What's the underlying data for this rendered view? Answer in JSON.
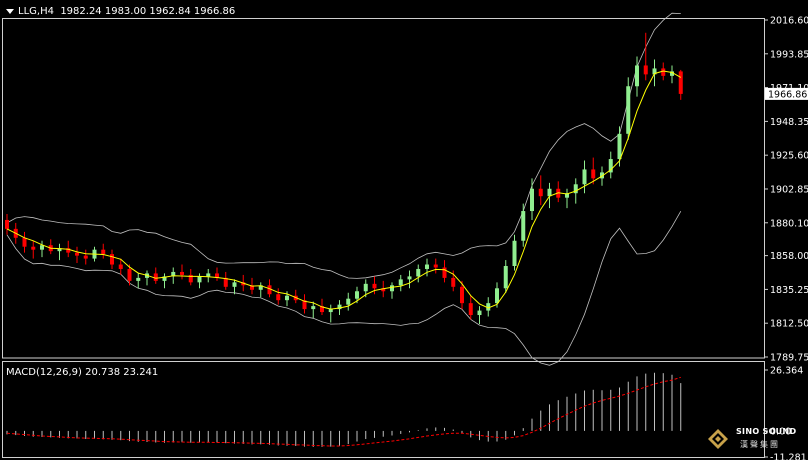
{
  "header": {
    "symbol": "LLG,H4",
    "ohlc": "1982.24 1983.00 1962.84 1966.86"
  },
  "macd_header": "MACD(12,26,9) 20.738 23.241",
  "price_axis": {
    "ticks": [
      "2016.60",
      "1993.85",
      "1971.10",
      "1948.35",
      "1925.60",
      "1902.85",
      "1880.10",
      "1858.00",
      "1835.25",
      "1812.50",
      "1789.75"
    ],
    "current_price": "1966.86"
  },
  "macd_axis": {
    "ticks": [
      "26.364",
      "0.00",
      "-11.281"
    ]
  },
  "logo": {
    "top_text": "SINO SOUND",
    "bottom_text": "漢聲集團"
  },
  "colors": {
    "background": "#000000",
    "bull_candle": "#90ee90",
    "bear_candle": "#ff0000",
    "ma_line": "#ffff00",
    "bollinger": "#c0c0c0",
    "macd_histogram": "#c0c0c0",
    "macd_signal": "#ff0000"
  },
  "chart_data": [
    {
      "type": "candlestick",
      "y_min": 1789.75,
      "y_max": 2016.6,
      "ohlc": [
        [
          1882,
          1886,
          1872,
          1876
        ],
        [
          1876,
          1880,
          1866,
          1870
        ],
        [
          1870,
          1874,
          1860,
          1864
        ],
        [
          1864,
          1868,
          1856,
          1862
        ],
        [
          1862,
          1868,
          1857,
          1865
        ],
        [
          1865,
          1869,
          1859,
          1861
        ],
        [
          1861,
          1866,
          1855,
          1863
        ],
        [
          1863,
          1868,
          1857,
          1860
        ],
        [
          1860,
          1864,
          1853,
          1858
        ],
        [
          1858,
          1862,
          1852,
          1856
        ],
        [
          1856,
          1864,
          1854,
          1862
        ],
        [
          1862,
          1866,
          1856,
          1859
        ],
        [
          1859,
          1862,
          1849,
          1852
        ],
        [
          1852,
          1856,
          1845,
          1849
        ],
        [
          1849,
          1852,
          1838,
          1841
        ],
        [
          1841,
          1846,
          1836,
          1843
        ],
        [
          1843,
          1848,
          1838,
          1846
        ],
        [
          1846,
          1850,
          1839,
          1841
        ],
        [
          1841,
          1846,
          1836,
          1844
        ],
        [
          1844,
          1850,
          1839,
          1847
        ],
        [
          1847,
          1852,
          1842,
          1845
        ],
        [
          1845,
          1849,
          1838,
          1840
        ],
        [
          1840,
          1846,
          1836,
          1844
        ],
        [
          1844,
          1849,
          1840,
          1846
        ],
        [
          1846,
          1850,
          1841,
          1843
        ],
        [
          1843,
          1847,
          1835,
          1837
        ],
        [
          1837,
          1842,
          1832,
          1840
        ],
        [
          1840,
          1845,
          1834,
          1838
        ],
        [
          1838,
          1843,
          1832,
          1835
        ],
        [
          1835,
          1840,
          1830,
          1838
        ],
        [
          1838,
          1842,
          1830,
          1832
        ],
        [
          1832,
          1836,
          1825,
          1828
        ],
        [
          1828,
          1834,
          1824,
          1831
        ],
        [
          1831,
          1835,
          1826,
          1828
        ],
        [
          1828,
          1832,
          1819,
          1822
        ],
        [
          1822,
          1827,
          1816,
          1824
        ],
        [
          1824,
          1829,
          1818,
          1820
        ],
        [
          1820,
          1825,
          1813,
          1822
        ],
        [
          1822,
          1828,
          1818,
          1825
        ],
        [
          1825,
          1833,
          1821,
          1829
        ],
        [
          1829,
          1837,
          1826,
          1834
        ],
        [
          1834,
          1842,
          1830,
          1839
        ],
        [
          1839,
          1844,
          1832,
          1836
        ],
        [
          1836,
          1841,
          1830,
          1834
        ],
        [
          1834,
          1840,
          1829,
          1838
        ],
        [
          1838,
          1845,
          1834,
          1842
        ],
        [
          1842,
          1848,
          1836,
          1844
        ],
        [
          1844,
          1852,
          1840,
          1849
        ],
        [
          1849,
          1856,
          1844,
          1852
        ],
        [
          1852,
          1856,
          1846,
          1850
        ],
        [
          1850,
          1855,
          1840,
          1843
        ],
        [
          1843,
          1848,
          1834,
          1837
        ],
        [
          1837,
          1841,
          1822,
          1826
        ],
        [
          1826,
          1831,
          1815,
          1818
        ],
        [
          1818,
          1824,
          1812,
          1821
        ],
        [
          1821,
          1830,
          1817,
          1826
        ],
        [
          1826,
          1840,
          1823,
          1836
        ],
        [
          1836,
          1855,
          1833,
          1851
        ],
        [
          1851,
          1872,
          1848,
          1868
        ],
        [
          1868,
          1893,
          1864,
          1888
        ],
        [
          1888,
          1910,
          1882,
          1903
        ],
        [
          1903,
          1912,
          1892,
          1898
        ],
        [
          1898,
          1907,
          1890,
          1903
        ],
        [
          1903,
          1908,
          1894,
          1897
        ],
        [
          1897,
          1903,
          1890,
          1900
        ],
        [
          1900,
          1910,
          1893,
          1906
        ],
        [
          1906,
          1922,
          1900,
          1916
        ],
        [
          1916,
          1924,
          1906,
          1910
        ],
        [
          1910,
          1918,
          1905,
          1914
        ],
        [
          1914,
          1928,
          1910,
          1923
        ],
        [
          1923,
          1945,
          1918,
          1940
        ],
        [
          1940,
          1978,
          1936,
          1972
        ],
        [
          1972,
          1992,
          1965,
          1986
        ],
        [
          1986,
          2008,
          1976,
          1980
        ],
        [
          1980,
          1990,
          1972,
          1984
        ],
        [
          1984,
          1988,
          1976,
          1979
        ],
        [
          1979,
          1986,
          1974,
          1982
        ],
        [
          1982,
          1983,
          1962.84,
          1966.86
        ]
      ]
    },
    {
      "type": "histogram",
      "y_min": -11.281,
      "y_max": 26.364,
      "values": [
        -1.5,
        -1.8,
        -2.2,
        -2.5,
        -2.6,
        -2.8,
        -3.0,
        -3.2,
        -3.3,
        -3.5,
        -3.4,
        -3.6,
        -3.8,
        -4.0,
        -4.4,
        -4.7,
        -4.8,
        -5.0,
        -5.1,
        -5.0,
        -4.9,
        -5.1,
        -5.0,
        -4.9,
        -5.0,
        -5.3,
        -5.5,
        -5.6,
        -5.8,
        -5.8,
        -6.0,
        -6.3,
        -6.4,
        -6.5,
        -6.8,
        -6.9,
        -6.9,
        -6.8,
        -6.4,
        -5.7,
        -4.6,
        -3.5,
        -3.0,
        -2.5,
        -2.0,
        -1.3,
        -0.6,
        0.3,
        1.1,
        1.5,
        1.3,
        0.6,
        -1.0,
        -2.8,
        -4.0,
        -4.6,
        -4.6,
        -3.8,
        -1.9,
        1.2,
        5.3,
        8.8,
        11.5,
        13.3,
        14.8,
        16.2,
        17.5,
        17.8,
        17.6,
        17.8,
        18.8,
        21.3,
        23.6,
        24.8,
        25.2,
        25.0,
        24.3,
        20.7
      ],
      "signal": [
        -1.0,
        -1.3,
        -1.6,
        -1.9,
        -2.2,
        -2.4,
        -2.6,
        -2.8,
        -3.0,
        -3.1,
        -3.2,
        -3.3,
        -3.4,
        -3.6,
        -3.8,
        -4.0,
        -4.2,
        -4.4,
        -4.6,
        -4.7,
        -4.8,
        -4.9,
        -4.9,
        -4.9,
        -5.0,
        -5.0,
        -5.1,
        -5.2,
        -5.3,
        -5.4,
        -5.5,
        -5.7,
        -5.8,
        -6.0,
        -6.1,
        -6.3,
        -6.4,
        -6.5,
        -6.5,
        -6.3,
        -6.0,
        -5.6,
        -5.2,
        -4.8,
        -4.4,
        -3.9,
        -3.4,
        -2.8,
        -2.2,
        -1.7,
        -1.3,
        -1.0,
        -1.0,
        -1.4,
        -1.9,
        -2.4,
        -2.8,
        -3.0,
        -2.8,
        -2.0,
        -0.6,
        1.2,
        3.3,
        5.3,
        7.2,
        9.0,
        10.7,
        12.1,
        13.2,
        14.1,
        15.1,
        16.3,
        17.7,
        19.1,
        20.3,
        21.3,
        22.0,
        23.2
      ]
    }
  ]
}
